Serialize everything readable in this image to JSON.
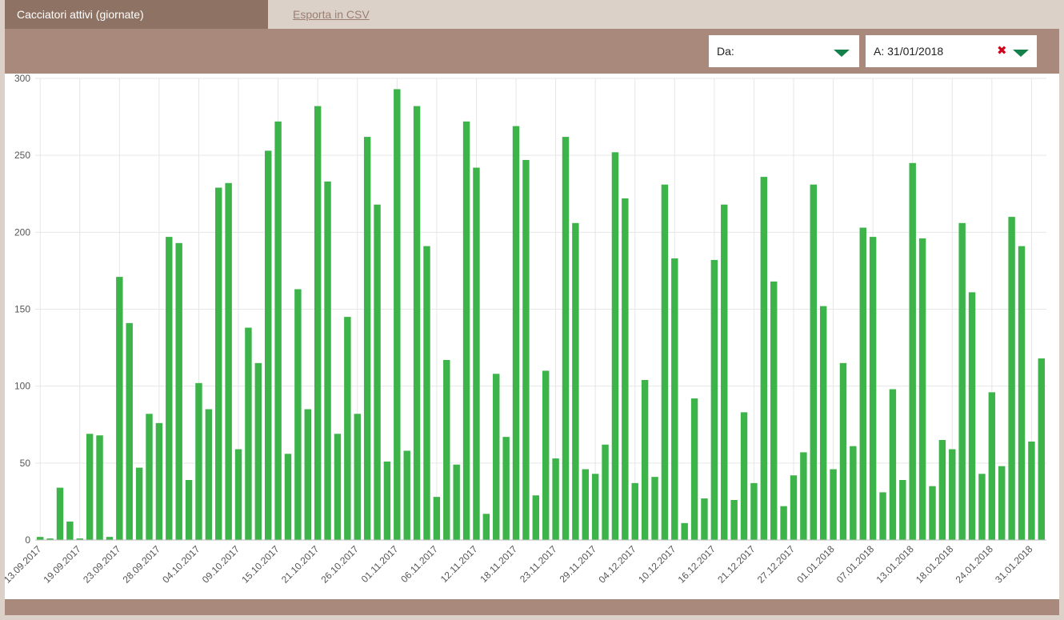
{
  "tabs": {
    "active_label": "Cacciatori attivi (giornate)",
    "export_label": "Esporta in CSV"
  },
  "filters": {
    "from_label": "Da:",
    "to_label": "A: 31/01/2018",
    "clear_symbol": "✖"
  },
  "colors": {
    "bar": "#3cb44a",
    "caret": "#15804a",
    "clear": "#d0021b"
  },
  "chart_data": {
    "type": "bar",
    "ylim": [
      0,
      300
    ],
    "yticks": [
      0,
      50,
      100,
      150,
      200,
      250,
      300
    ],
    "grid": true,
    "xtick_labels": [
      "13.09.2017",
      "19.09.2017",
      "23.09.2017",
      "28.09.2017",
      "04.10.2017",
      "09.10.2017",
      "15.10.2017",
      "21.10.2017",
      "26.10.2017",
      "01.11.2017",
      "06.11.2017",
      "12.11.2017",
      "18.11.2017",
      "23.11.2017",
      "29.11.2017",
      "04.12.2017",
      "10.12.2017",
      "16.12.2017",
      "21.12.2017",
      "27.12.2017",
      "01.01.2018",
      "07.01.2018",
      "13.01.2018",
      "18.01.2018",
      "24.01.2018",
      "31.01.2018"
    ],
    "values": [
      2,
      1,
      34,
      12,
      1,
      69,
      68,
      2,
      171,
      141,
      47,
      82,
      76,
      197,
      193,
      39,
      102,
      85,
      229,
      232,
      59,
      138,
      115,
      253,
      272,
      56,
      163,
      85,
      282,
      233,
      69,
      145,
      82,
      262,
      218,
      51,
      293,
      58,
      282,
      191,
      28,
      117,
      49,
      272,
      242,
      17,
      108,
      67,
      269,
      247,
      29,
      110,
      53,
      262,
      206,
      46,
      43,
      62,
      252,
      222,
      37,
      104,
      41,
      231,
      183,
      11,
      92,
      27,
      182,
      218,
      26,
      83,
      37,
      236,
      168,
      22,
      42,
      57,
      231,
      152,
      46,
      115,
      61,
      203,
      197,
      31,
      98,
      39,
      245,
      196,
      35,
      65,
      59,
      206,
      161,
      43,
      96,
      48,
      210,
      191,
      64,
      118
    ]
  }
}
